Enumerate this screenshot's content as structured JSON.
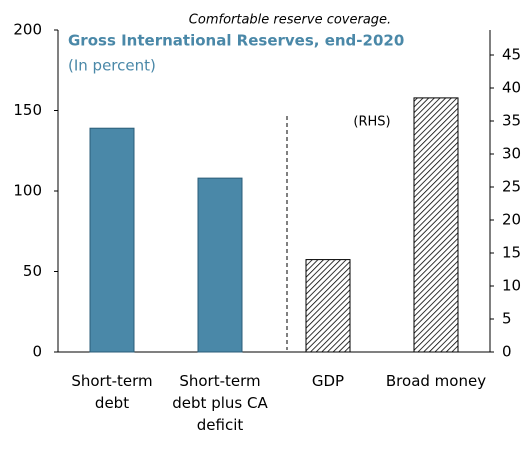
{
  "chart_data": {
    "type": "bar",
    "title": "Comfortable reserve coverage.",
    "subtitle": "Gross International Reserves, end-2020",
    "unit_note": "(In percent)",
    "annotation": "(RHS)",
    "categories": [
      "Short-term debt",
      "Short-term debt plus CA deficit",
      "GDP",
      "Broad money"
    ],
    "series": [
      {
        "color": "#4a88a8",
        "values": [
          139,
          108,
          null,
          null
        ]
      },
      {
        "color": "#000000",
        "pattern": "hatch",
        "axis": "y2",
        "values": [
          null,
          null,
          14,
          38.5
        ]
      }
    ],
    "ylim": [
      0,
      200
    ],
    "yticks": [
      0,
      50,
      100,
      150,
      200
    ],
    "y2lim": [
      0,
      45
    ],
    "y2ticks": [
      0,
      5,
      10,
      15,
      20,
      25,
      30,
      35,
      40,
      45
    ],
    "grid": false
  }
}
